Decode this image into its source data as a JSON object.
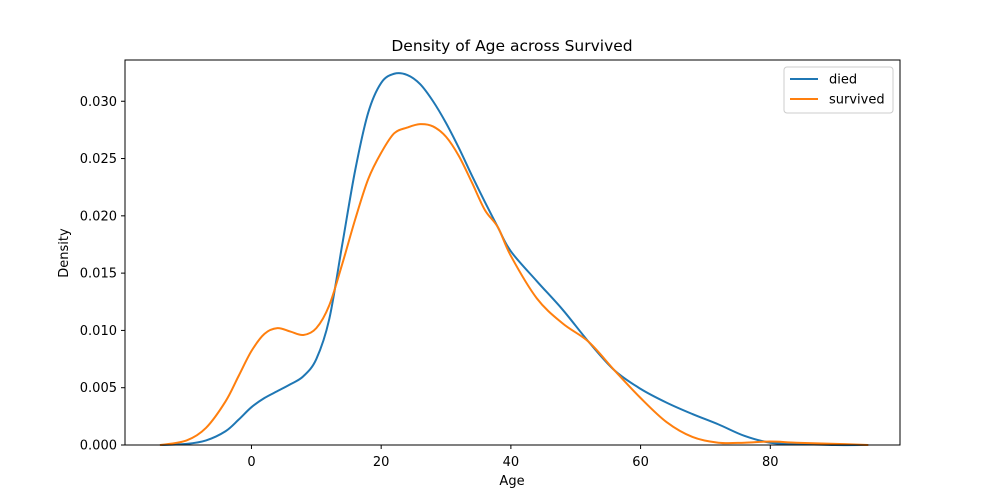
{
  "chart_data": {
    "type": "line",
    "title": "Density of Age across Survived",
    "xlabel": "Age",
    "ylabel": "Density",
    "xlim": [
      -19.5,
      100
    ],
    "ylim": [
      0,
      0.0336
    ],
    "xticks": [
      0,
      20,
      40,
      60,
      80
    ],
    "xtick_labels": [
      "0",
      "20",
      "40",
      "60",
      "80"
    ],
    "yticks": [
      0,
      0.005,
      0.01,
      0.015,
      0.02,
      0.025,
      0.03
    ],
    "ytick_labels": [
      "0.000",
      "0.005",
      "0.010",
      "0.015",
      "0.020",
      "0.025",
      "0.030"
    ],
    "grid": false,
    "legend_position": "top-right",
    "series": [
      {
        "name": "died",
        "color": "#1f77b4",
        "x": [
          -14,
          -10,
          -7,
          -4,
          -2,
          0,
          2,
          4,
          6,
          8,
          10,
          12,
          14,
          16,
          18,
          20,
          22,
          24,
          26,
          28,
          30,
          32,
          34,
          36,
          38,
          40,
          44,
          48,
          52,
          56,
          60,
          64,
          68,
          72,
          76,
          80,
          84,
          90,
          95
        ],
        "values": [
          0.0,
          0.0001,
          0.0004,
          0.0012,
          0.0022,
          0.0033,
          0.0041,
          0.0047,
          0.0053,
          0.006,
          0.0075,
          0.011,
          0.0175,
          0.024,
          0.029,
          0.0316,
          0.0324,
          0.0323,
          0.0315,
          0.03,
          0.0281,
          0.0259,
          0.0235,
          0.0212,
          0.019,
          0.0169,
          0.0143,
          0.0118,
          0.009,
          0.0065,
          0.0049,
          0.0037,
          0.0027,
          0.0018,
          0.0008,
          0.0002,
          0.0001,
          0.0,
          0.0
        ]
      },
      {
        "name": "survived",
        "color": "#ff7f0e",
        "x": [
          -14,
          -10,
          -7,
          -4,
          -2,
          0,
          2,
          4,
          6,
          8,
          10,
          12,
          14,
          16,
          18,
          20,
          22,
          24,
          26,
          28,
          30,
          32,
          34,
          36,
          38,
          40,
          44,
          48,
          52,
          56,
          60,
          64,
          68,
          72,
          76,
          80,
          84,
          90,
          95
        ],
        "values": [
          0.0,
          0.0004,
          0.0015,
          0.0038,
          0.006,
          0.0082,
          0.0097,
          0.0102,
          0.0099,
          0.0096,
          0.0102,
          0.0122,
          0.0158,
          0.0197,
          0.0232,
          0.0255,
          0.0272,
          0.0277,
          0.028,
          0.0278,
          0.0269,
          0.0252,
          0.0229,
          0.0205,
          0.019,
          0.0165,
          0.0128,
          0.0106,
          0.009,
          0.0065,
          0.0041,
          0.002,
          0.0007,
          0.0002,
          0.0002,
          0.0003,
          0.0002,
          0.0001,
          0.0
        ]
      }
    ]
  }
}
